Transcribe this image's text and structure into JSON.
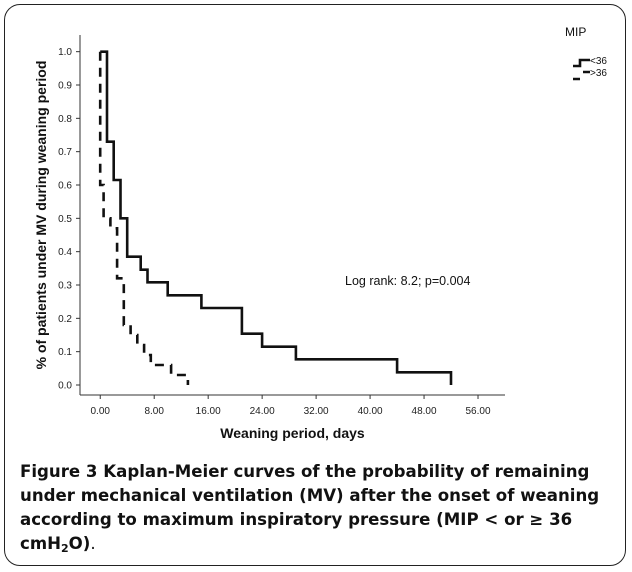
{
  "chart_data": {
    "type": "line",
    "subtype": "kaplan-meier step",
    "ylabel": "% of patients under MV during weaning period",
    "xlabel": "Weaning period, days",
    "x_ticks": [
      "0.00",
      "8.00",
      "16.00",
      "24.00",
      "32.00",
      "40.00",
      "48.00",
      "56.00"
    ],
    "x_tick_values": [
      0,
      8,
      16,
      24,
      32,
      40,
      48,
      56
    ],
    "y_ticks": [
      "0.0",
      "0.1",
      "0.2",
      "0.3",
      "0.4",
      "0.5",
      "0.6",
      "0.7",
      "0.8",
      "0.9",
      "1.0"
    ],
    "y_tick_values": [
      0.0,
      0.1,
      0.2,
      0.3,
      0.4,
      0.5,
      0.6,
      0.7,
      0.8,
      0.9,
      1.0
    ],
    "xlim": [
      -3,
      60
    ],
    "ylim": [
      -0.03,
      1.05
    ],
    "legend_title": "MIP",
    "legend_position": "top-right",
    "annotation": "Log rank: 8.2; p=0.004",
    "series": [
      {
        "name": "<36",
        "style": "solid",
        "points": [
          [
            0,
            1.0
          ],
          [
            1,
            1.0
          ],
          [
            1,
            0.73
          ],
          [
            2,
            0.73
          ],
          [
            2,
            0.615
          ],
          [
            3,
            0.615
          ],
          [
            3,
            0.5
          ],
          [
            4,
            0.5
          ],
          [
            4,
            0.385
          ],
          [
            6,
            0.385
          ],
          [
            6,
            0.346
          ],
          [
            7,
            0.346
          ],
          [
            7,
            0.308
          ],
          [
            10,
            0.308
          ],
          [
            10,
            0.269
          ],
          [
            15,
            0.269
          ],
          [
            15,
            0.231
          ],
          [
            21,
            0.231
          ],
          [
            21,
            0.154
          ],
          [
            24,
            0.154
          ],
          [
            24,
            0.115
          ],
          [
            29,
            0.115
          ],
          [
            29,
            0.077
          ],
          [
            44,
            0.077
          ],
          [
            44,
            0.038
          ],
          [
            52,
            0.038
          ],
          [
            52,
            0.0
          ]
        ]
      },
      {
        "name": ">36",
        "style": "dashed",
        "points": [
          [
            0,
            1.0
          ],
          [
            0,
            0.6
          ],
          [
            0.5,
            0.6
          ],
          [
            0.5,
            0.5
          ],
          [
            1.5,
            0.5
          ],
          [
            1.5,
            0.47
          ],
          [
            2.5,
            0.47
          ],
          [
            2.5,
            0.32
          ],
          [
            3.5,
            0.32
          ],
          [
            3.5,
            0.18
          ],
          [
            4.5,
            0.18
          ],
          [
            4.5,
            0.15
          ],
          [
            5.5,
            0.15
          ],
          [
            5.5,
            0.12
          ],
          [
            6.5,
            0.12
          ],
          [
            6.5,
            0.09
          ],
          [
            7.5,
            0.09
          ],
          [
            7.5,
            0.06
          ],
          [
            10.5,
            0.06
          ],
          [
            10.5,
            0.03
          ],
          [
            13,
            0.03
          ],
          [
            13,
            0.0
          ]
        ]
      }
    ]
  },
  "caption": {
    "label": "Figure 3",
    "text_bold": " Kaplan-Meier curves of the probability of remaining under mechanical ventilation (MV) after the onset of weaning according to maximum inspiratory pressure (MIP < or ≥ 36 cmH",
    "subscript": "2",
    "text_bold_end": "O)",
    "text_normal_end": "."
  }
}
